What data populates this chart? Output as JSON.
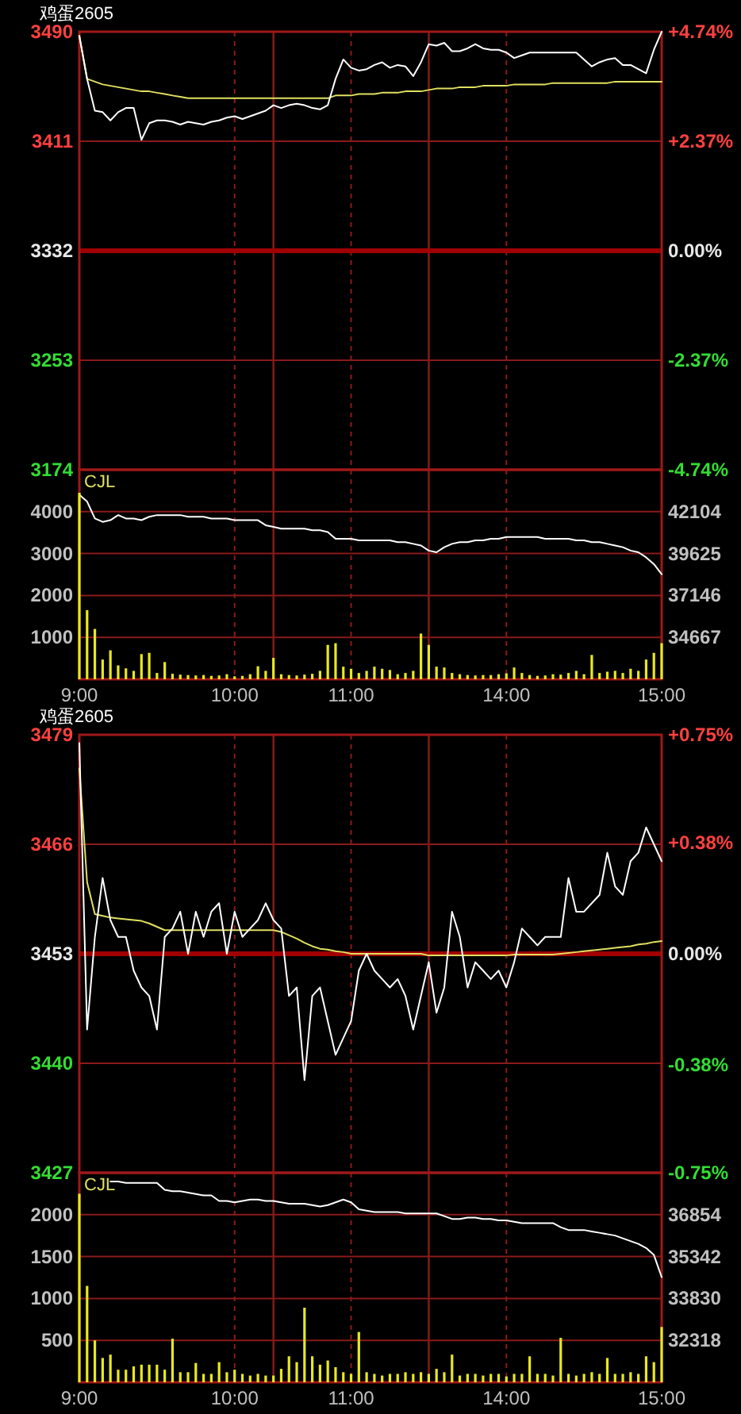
{
  "chart_data": [
    {
      "type": "line",
      "title": "鸡蛋2605",
      "categories": [
        null,
        null,
        null,
        null,
        null,
        null,
        null,
        null,
        null,
        null,
        null,
        null,
        null,
        null,
        null,
        null,
        null,
        null,
        null,
        null,
        null,
        null,
        null,
        null,
        null,
        null,
        null,
        null,
        null,
        null,
        null,
        null,
        null,
        null,
        null,
        null,
        null,
        null,
        null,
        null,
        null,
        null,
        null,
        null,
        null,
        null,
        null,
        null,
        null,
        null,
        null,
        null,
        null,
        null,
        null,
        null,
        null,
        null,
        null,
        null,
        null,
        null,
        null,
        null,
        null,
        null,
        null,
        null,
        null,
        null,
        null,
        null,
        null,
        null,
        null,
        null
      ],
      "tick_labels": "y",
      "ylim": [
        3174,
        3490
      ],
      "yticks": [
        3174,
        3253,
        3332,
        3411,
        3490
      ],
      "y2lim": [
        -4.74,
        4.74
      ],
      "y2ticks": [
        {
          "value": -4.74,
          "label": "-4.74%"
        },
        {
          "value": -2.37,
          "label": "-2.37%"
        },
        {
          "value": 0,
          "label": "0.00%"
        },
        {
          "value": 2.37,
          "label": "+2.37%"
        },
        {
          "value": 4.74,
          "label": "+4.74%"
        }
      ],
      "grid": true,
      "ref_lines": [
        {
          "axis": "y",
          "value": 3332,
          "color": "#a00000"
        }
      ],
      "series": [
        {
          "color": "#ffffff",
          "values": [
            3487,
            3456,
            3433,
            3432,
            3426,
            3432,
            3435,
            3435,
            3412,
            3424,
            3426,
            3426,
            3425,
            3423,
            3425,
            3424,
            3423,
            3425,
            3426,
            3428,
            3429,
            3427,
            3429,
            3431,
            3433,
            3437,
            3435,
            3437,
            3438,
            3437,
            3435,
            3434,
            3437,
            3456,
            3470,
            3464,
            3462,
            3463,
            3466,
            3468,
            3464,
            3466,
            3465,
            3458,
            3468,
            3481,
            3480,
            3482,
            3476,
            3476,
            3478,
            3481,
            3478,
            3477,
            3477,
            3475,
            3471,
            3473,
            3475,
            3475,
            3475,
            3475,
            3475,
            3475,
            3475,
            3470,
            3465,
            3468,
            3470,
            3471,
            3466,
            3466,
            3463,
            3460,
            3477,
            3490
          ]
        },
        {
          "color": "#e0e060",
          "values": [
            3487,
            3456,
            3454,
            3452,
            3451,
            3450,
            3449,
            3448,
            3447,
            3447,
            3446,
            3445,
            3444,
            3443,
            3442,
            3442,
            3442,
            3442,
            3442,
            3442,
            3442,
            3442,
            3442,
            3442,
            3442,
            3442,
            3442,
            3442,
            3442,
            3442,
            3442,
            3442,
            3442,
            3444,
            3444,
            3444,
            3445,
            3445,
            3445,
            3446,
            3446,
            3446,
            3447,
            3447,
            3447,
            3448,
            3449,
            3449,
            3449,
            3450,
            3450,
            3450,
            3451,
            3451,
            3451,
            3451,
            3452,
            3452,
            3452,
            3452,
            3452,
            3453,
            3453,
            3453,
            3453,
            3453,
            3453,
            3453,
            3453,
            3454,
            3454,
            3454,
            3454,
            3454,
            3454,
            3454
          ]
        }
      ]
    },
    {
      "type": "bar",
      "annotations": [
        "CJL"
      ],
      "categories": [
        "9:00",
        null,
        null,
        null,
        null,
        null,
        null,
        null,
        null,
        null,
        null,
        null,
        null,
        null,
        null,
        null,
        null,
        null,
        null,
        null,
        "10:00",
        null,
        null,
        null,
        null,
        null,
        null,
        null,
        null,
        null,
        null,
        null,
        null,
        null,
        null,
        "11:00",
        null,
        null,
        null,
        null,
        null,
        null,
        null,
        null,
        null,
        null,
        null,
        null,
        null,
        null,
        null,
        null,
        null,
        null,
        null,
        "14:00",
        null,
        null,
        null,
        null,
        null,
        null,
        null,
        null,
        null,
        null,
        null,
        null,
        null,
        null,
        null,
        null,
        null,
        null,
        null,
        "15:00"
      ],
      "ylim": [
        0,
        5000
      ],
      "yticks": [
        1000,
        2000,
        3000,
        4000
      ],
      "y2lim": [
        32188,
        44583
      ],
      "y2ticks": [
        34667,
        37146,
        39625,
        42104
      ],
      "grid": true,
      "series": [
        {
          "color": "#e8e820",
          "values": [
            4450,
            1650,
            1200,
            470,
            690,
            330,
            260,
            200,
            600,
            630,
            150,
            410,
            130,
            110,
            100,
            90,
            100,
            80,
            90,
            120,
            70,
            80,
            120,
            310,
            200,
            510,
            120,
            100,
            90,
            110,
            130,
            200,
            820,
            860,
            300,
            250,
            150,
            200,
            300,
            250,
            220,
            120,
            150,
            200,
            1090,
            820,
            300,
            280,
            150,
            120,
            100,
            90,
            100,
            100,
            120,
            140,
            280,
            150,
            100,
            80,
            90,
            120,
            110,
            150,
            200,
            120,
            580,
            150,
            180,
            200,
            150,
            250,
            200,
            470,
            630,
            860
          ]
        },
        {
          "type": "line",
          "axis": "y2",
          "color": "#ffffff",
          "values": [
            43100,
            42700,
            41700,
            41500,
            41600,
            41900,
            41700,
            41700,
            41600,
            41800,
            41900,
            41900,
            41900,
            41900,
            41800,
            41800,
            41800,
            41700,
            41700,
            41700,
            41600,
            41600,
            41600,
            41600,
            41300,
            41200,
            41100,
            41100,
            41100,
            41100,
            41000,
            41000,
            40900,
            40500,
            40500,
            40500,
            40400,
            40400,
            40400,
            40400,
            40400,
            40300,
            40300,
            40200,
            40100,
            39800,
            39700,
            40000,
            40200,
            40300,
            40300,
            40400,
            40400,
            40500,
            40500,
            40600,
            40600,
            40600,
            40600,
            40600,
            40500,
            40500,
            40500,
            40500,
            40400,
            40400,
            40300,
            40300,
            40200,
            40100,
            40000,
            39800,
            39700,
            39400,
            39000,
            38400
          ]
        }
      ]
    },
    {
      "type": "line",
      "title": "鸡蛋2605",
      "categories": [
        null,
        null,
        null,
        null,
        null,
        null,
        null,
        null,
        null,
        null,
        null,
        null,
        null,
        null,
        null,
        null,
        null,
        null,
        null,
        null,
        null,
        null,
        null,
        null,
        null,
        null,
        null,
        null,
        null,
        null,
        null,
        null,
        null,
        null,
        null,
        null,
        null,
        null,
        null,
        null,
        null,
        null,
        null,
        null,
        null,
        null,
        null,
        null,
        null,
        null,
        null,
        null,
        null,
        null,
        null,
        null,
        null,
        null,
        null,
        null,
        null,
        null,
        null,
        null,
        null,
        null,
        null,
        null,
        null,
        null,
        null,
        null,
        null,
        null,
        null,
        null
      ],
      "tick_labels": "y",
      "ylim": [
        3427,
        3479
      ],
      "yticks": [
        3427,
        3440,
        3453,
        3466,
        3479
      ],
      "y2lim": [
        -0.75,
        0.75
      ],
      "y2ticks": [
        {
          "value": -0.75,
          "label": "-0.75%"
        },
        {
          "value": -0.38,
          "label": "-0.38%"
        },
        {
          "value": 0,
          "label": "0.00%"
        },
        {
          "value": 0.38,
          "label": "+0.38%"
        },
        {
          "value": 0.75,
          "label": "+0.75%"
        }
      ],
      "grid": true,
      "ref_lines": [
        {
          "axis": "y",
          "value": 3453,
          "color": "#a00000"
        }
      ],
      "series": [
        {
          "color": "#ffffff",
          "values": [
            3478,
            3444,
            3455,
            3462,
            3457,
            3455,
            3455,
            3451,
            3449,
            3448,
            3444,
            3455,
            3456,
            3458,
            3453,
            3458,
            3455,
            3458,
            3459,
            3453,
            3458,
            3455,
            3456,
            3457,
            3459,
            3457,
            3456,
            3448,
            3449,
            3438,
            3448,
            3449,
            3445,
            3441,
            3443,
            3445,
            3451,
            3453,
            3451,
            3450,
            3449,
            3450,
            3448,
            3444,
            3448,
            3452,
            3446,
            3449,
            3458,
            3455,
            3449,
            3452,
            3451,
            3450,
            3451,
            3449,
            3452,
            3456,
            3455,
            3454,
            3455,
            3455,
            3455,
            3462,
            3458,
            3458,
            3459,
            3460,
            3465,
            3461,
            3460,
            3464,
            3465,
            3468,
            3466,
            3464
          ]
        },
        {
          "color": "#e0e060",
          "values": [
            3475,
            3461.5,
            3457.7,
            3457.5,
            3457.3,
            3457.2,
            3457.1,
            3457,
            3456.9,
            3456.6,
            3456.2,
            3455.8,
            3455.8,
            3455.8,
            3455.8,
            3455.8,
            3455.8,
            3455.8,
            3455.8,
            3455.8,
            3455.8,
            3455.8,
            3455.8,
            3455.8,
            3455.8,
            3455.8,
            3455.6,
            3455.2,
            3454.8,
            3454.3,
            3453.9,
            3453.6,
            3453.5,
            3453.3,
            3453.2,
            3453,
            3453,
            3453,
            3453,
            3453,
            3453,
            3453,
            3453,
            3453,
            3453,
            3452.8,
            3452.8,
            3452.8,
            3452.8,
            3452.8,
            3452.8,
            3452.8,
            3452.8,
            3452.8,
            3452.8,
            3452.8,
            3452.9,
            3452.9,
            3452.9,
            3452.9,
            3452.9,
            3452.9,
            3453,
            3453.1,
            3453.2,
            3453.3,
            3453.4,
            3453.5,
            3453.6,
            3453.7,
            3453.8,
            3453.9,
            3454.1,
            3454.2,
            3454.4,
            3454.5
          ]
        }
      ]
    },
    {
      "type": "bar",
      "annotations": [
        "CJL"
      ],
      "categories": [
        "9:00",
        null,
        null,
        null,
        null,
        null,
        null,
        null,
        null,
        null,
        null,
        null,
        null,
        null,
        null,
        null,
        null,
        null,
        null,
        null,
        "10:00",
        null,
        null,
        null,
        null,
        null,
        null,
        null,
        null,
        null,
        null,
        null,
        null,
        null,
        null,
        "11:00",
        null,
        null,
        null,
        null,
        null,
        null,
        null,
        null,
        null,
        null,
        null,
        null,
        null,
        null,
        null,
        null,
        null,
        null,
        null,
        "14:00",
        null,
        null,
        null,
        null,
        null,
        null,
        null,
        null,
        null,
        null,
        null,
        null,
        null,
        null,
        null,
        null,
        null,
        null,
        null,
        "15:00"
      ],
      "ylim": [
        0,
        2500
      ],
      "yticks": [
        500,
        1000,
        1500,
        2000
      ],
      "y2lim": [
        30806,
        38366
      ],
      "y2ticks": [
        32318,
        33830,
        35342,
        36854
      ],
      "grid": true,
      "series": [
        {
          "color": "#e8e820",
          "values": [
            2250,
            1150,
            500,
            290,
            330,
            150,
            150,
            190,
            210,
            210,
            210,
            150,
            520,
            120,
            120,
            230,
            100,
            100,
            240,
            120,
            150,
            100,
            80,
            100,
            80,
            80,
            160,
            310,
            240,
            890,
            310,
            210,
            260,
            180,
            120,
            100,
            600,
            120,
            100,
            80,
            100,
            100,
            120,
            100,
            120,
            100,
            160,
            120,
            330,
            80,
            100,
            100,
            80,
            100,
            100,
            70,
            100,
            100,
            310,
            100,
            100,
            80,
            530,
            100,
            80,
            100,
            120,
            100,
            290,
            100,
            100,
            120,
            100,
            310,
            240,
            660
          ]
        },
        {
          "type": "line",
          "axis": "y2",
          "color": "#ffffff",
          "values": [
            null,
            null,
            null,
            null,
            38050,
            38050,
            38000,
            38000,
            38000,
            38000,
            38000,
            37750,
            37700,
            37700,
            37650,
            37600,
            37550,
            37550,
            37350,
            37350,
            37300,
            37350,
            37400,
            37400,
            37350,
            37350,
            37300,
            37250,
            37250,
            37250,
            37200,
            37150,
            37200,
            37300,
            37400,
            37300,
            37050,
            37000,
            36950,
            36950,
            36950,
            36950,
            36900,
            36900,
            36900,
            36900,
            36900,
            36800,
            36700,
            36700,
            36750,
            36750,
            36700,
            36700,
            36650,
            36650,
            36600,
            36550,
            36550,
            36550,
            36550,
            36550,
            36400,
            36300,
            36300,
            36300,
            36250,
            36200,
            36150,
            36100,
            36000,
            35900,
            35800,
            35650,
            35400,
            34600
          ]
        }
      ]
    }
  ]
}
